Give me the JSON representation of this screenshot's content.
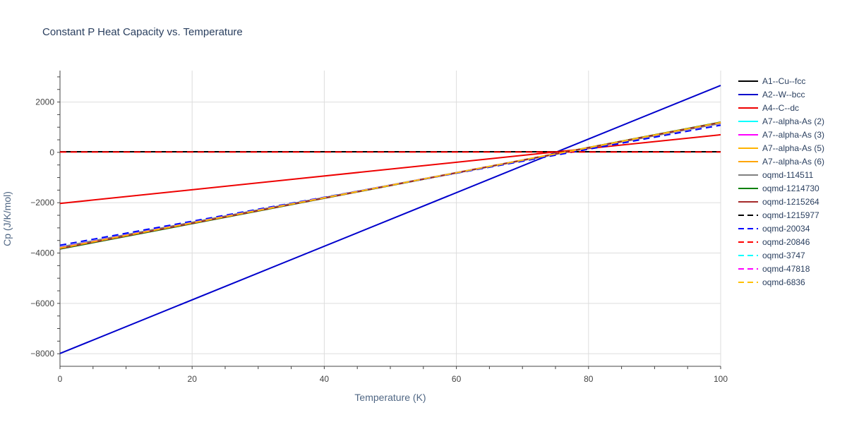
{
  "chart_data": {
    "type": "line",
    "title": "Constant P Heat Capacity vs. Temperature",
    "xlabel": "Temperature (K)",
    "ylabel": "Cp (J/K/mol)",
    "xlim": [
      0,
      100
    ],
    "ylim": [
      -8500,
      3250
    ],
    "x_ticks": [
      0,
      20,
      40,
      60,
      80,
      100
    ],
    "y_ticks": [
      -8000,
      -6000,
      -4000,
      -2000,
      0,
      2000
    ],
    "grid": true,
    "legend_position": "right",
    "series": [
      {
        "name": "A1--Cu--fcc",
        "color": "#000000",
        "dash": "solid",
        "x": [
          0,
          100
        ],
        "y": [
          25,
          25
        ]
      },
      {
        "name": "A2--W--bcc",
        "color": "#0000cc",
        "dash": "solid",
        "x": [
          0,
          100
        ],
        "y": [
          -7990,
          2660
        ]
      },
      {
        "name": "A4--C--dc",
        "color": "#ee0000",
        "dash": "solid",
        "x": [
          0,
          100
        ],
        "y": [
          -2030,
          700
        ]
      },
      {
        "name": "A7--alpha-As (2)",
        "color": "#00ffff",
        "dash": "solid",
        "x": [
          0,
          100
        ],
        "y": [
          -3780,
          1180
        ]
      },
      {
        "name": "A7--alpha-As (3)",
        "color": "#ff00ff",
        "dash": "solid",
        "x": [
          0,
          100
        ],
        "y": [
          -3790,
          1185
        ]
      },
      {
        "name": "A7--alpha-As (5)",
        "color": "#ffb300",
        "dash": "solid",
        "x": [
          0,
          100
        ],
        "y": [
          -3800,
          1190
        ]
      },
      {
        "name": "A7--alpha-As (6)",
        "color": "#ffa500",
        "dash": "solid",
        "x": [
          0,
          100
        ],
        "y": [
          -3810,
          1195
        ]
      },
      {
        "name": "oqmd-114511",
        "color": "#808080",
        "dash": "solid",
        "x": [
          0,
          100
        ],
        "y": [
          -3760,
          1150
        ]
      },
      {
        "name": "oqmd-1214730",
        "color": "#008000",
        "dash": "solid",
        "x": [
          0,
          100
        ],
        "y": [
          -3840,
          1200
        ]
      },
      {
        "name": "oqmd-1215264",
        "color": "#a52a2a",
        "dash": "solid",
        "x": [
          0,
          100
        ],
        "y": [
          -3820,
          1190
        ]
      },
      {
        "name": "oqmd-1215977",
        "color": "#000000",
        "dash": "dash",
        "x": [
          0,
          100
        ],
        "y": [
          25,
          25
        ]
      },
      {
        "name": "oqmd-20034",
        "color": "#0000ff",
        "dash": "dash",
        "x": [
          0,
          100
        ],
        "y": [
          -3690,
          1080
        ]
      },
      {
        "name": "oqmd-20846",
        "color": "#ff0000",
        "dash": "dash",
        "x": [
          0,
          100
        ],
        "y": [
          15,
          15
        ]
      },
      {
        "name": "oqmd-3747",
        "color": "#00ffff",
        "dash": "dash",
        "x": [
          0,
          100
        ],
        "y": [
          -3770,
          1170
        ]
      },
      {
        "name": "oqmd-47818",
        "color": "#ff00ff",
        "dash": "dash",
        "x": [
          0,
          100
        ],
        "y": [
          -3780,
          1175
        ]
      },
      {
        "name": "oqmd-6836",
        "color": "#ffc000",
        "dash": "dash",
        "x": [
          0,
          100
        ],
        "y": [
          -3800,
          1185
        ]
      }
    ]
  }
}
